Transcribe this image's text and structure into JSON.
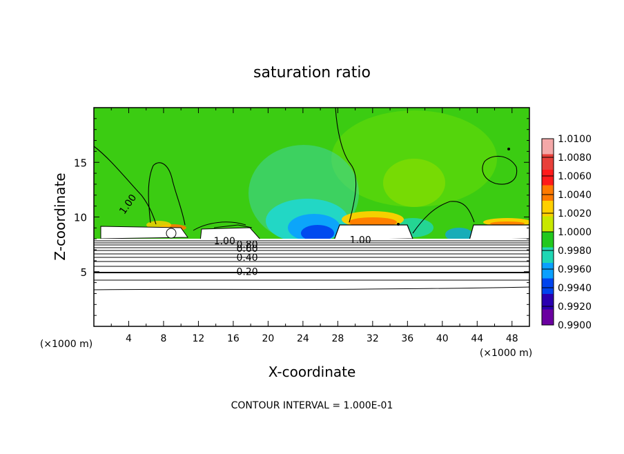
{
  "chart_data": {
    "type": "heatmap",
    "title": "saturation ratio",
    "xlabel": "X-coordinate",
    "ylabel": "Z-coordinate",
    "x_unit": "(×1000 m)",
    "z_unit": "(×1000 m)",
    "xlim": [
      0,
      50
    ],
    "ylim": [
      0,
      20
    ],
    "x_ticks": [
      "4",
      "8",
      "12",
      "16",
      "20",
      "24",
      "28",
      "32",
      "36",
      "40",
      "44",
      "48"
    ],
    "y_ticks": [
      "5",
      "10",
      "15"
    ],
    "footer": "CONTOUR INTERVAL = 1.000E-01",
    "contour_labels": [
      {
        "text": "1.00",
        "x": 4.2,
        "z": 11.0,
        "rotate": -55
      },
      {
        "text": "1.00",
        "x": 15.0,
        "z": 7.5,
        "rotate": 0
      },
      {
        "text": "0.80",
        "x": 17.6,
        "z": 7.2,
        "rotate": 0
      },
      {
        "text": "0.60",
        "x": 17.6,
        "z": 6.8,
        "rotate": 0
      },
      {
        "text": "0.40",
        "x": 17.6,
        "z": 6.0,
        "rotate": 0
      },
      {
        "text": "0.20",
        "x": 17.6,
        "z": 4.7,
        "rotate": 0
      },
      {
        "text": "1.00",
        "x": 30.6,
        "z": 7.6,
        "rotate": 0
      }
    ],
    "colorbar": {
      "labels": [
        "1.0100",
        "1.0080",
        "1.0060",
        "1.0040",
        "1.0020",
        "1.0000",
        "0.9980",
        "0.9960",
        "0.9940",
        "0.9920",
        "0.9900"
      ],
      "colors": [
        "#f4a8a8",
        "#e8403a",
        "#ff1a1a",
        "#ff7a00",
        "#ffd000",
        "#c8e800",
        "#22c81e",
        "#1fd7b4",
        "#0aa0ff",
        "#0044ee",
        "#2a00b0",
        "#6a00a0"
      ]
    }
  }
}
